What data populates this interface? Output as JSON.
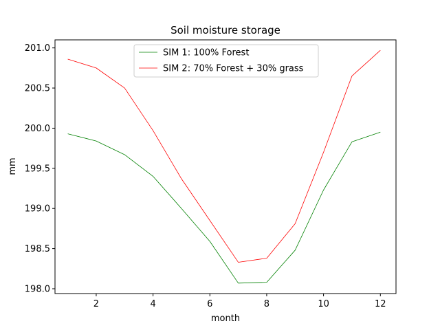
{
  "chart_data": {
    "type": "line",
    "title": "Soil moisture storage",
    "xlabel": "month",
    "ylabel": "mm",
    "xlim": [
      0.55,
      12.55
    ],
    "ylim": [
      197.94,
      201.1
    ],
    "xticks": [
      2,
      4,
      6,
      8,
      10,
      12
    ],
    "yticks": [
      198.0,
      198.5,
      199.0,
      199.5,
      200.0,
      200.5,
      201.0
    ],
    "ytick_labels": [
      "198.0",
      "198.5",
      "199.0",
      "199.5",
      "200.0",
      "200.5",
      "201.0"
    ],
    "grid": false,
    "legend_position": "upper center",
    "x": [
      1,
      2,
      3,
      4,
      5,
      6,
      7,
      8,
      9,
      10,
      11,
      12
    ],
    "series": [
      {
        "name": "SIM 1: 100% Forest",
        "color": "#008000",
        "values": [
          199.93,
          199.84,
          199.67,
          199.4,
          199.0,
          198.59,
          198.07,
          198.08,
          198.48,
          199.23,
          199.83,
          199.95
        ]
      },
      {
        "name": "SIM 2: 70% Forest + 30% grass",
        "color": "#ff0000",
        "values": [
          200.86,
          200.75,
          200.5,
          199.97,
          199.37,
          198.85,
          198.33,
          198.38,
          198.81,
          199.7,
          200.65,
          200.97
        ]
      }
    ]
  }
}
